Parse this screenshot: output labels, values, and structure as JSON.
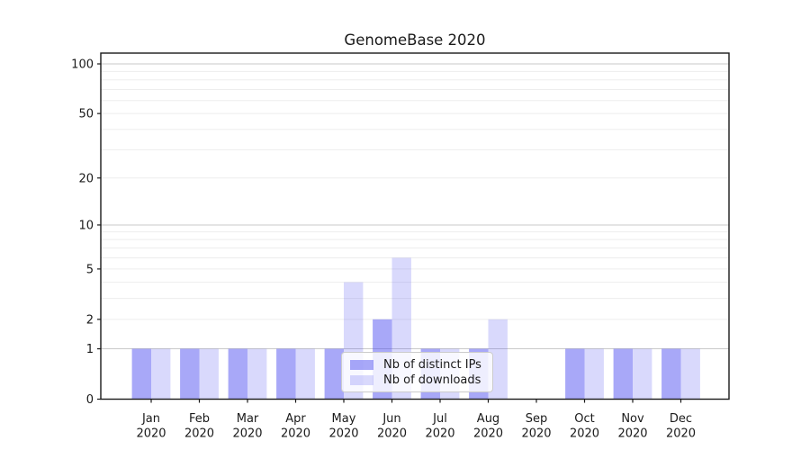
{
  "chart_data": {
    "type": "bar",
    "title": "GenomeBase 2020",
    "categories": [
      "Jan",
      "Feb",
      "Mar",
      "Apr",
      "May",
      "Jun",
      "Jul",
      "Aug",
      "Sep",
      "Oct",
      "Nov",
      "Dec"
    ],
    "x_tick_second_line": "2020",
    "series": [
      {
        "name": "Nb of distinct IPs",
        "color": "rgba(82,82,241,0.5)",
        "values": [
          1,
          1,
          1,
          1,
          1,
          2,
          1,
          1,
          0,
          1,
          1,
          1
        ]
      },
      {
        "name": "Nb of downloads",
        "color": "rgba(82,82,241,0.22)",
        "values": [
          1,
          1,
          1,
          1,
          4,
          6,
          1,
          2,
          0,
          1,
          1,
          1
        ]
      }
    ],
    "xlabel": "",
    "ylabel": "",
    "y_scale": "log1p",
    "y_ticks": [
      0,
      1,
      2,
      5,
      10,
      20,
      50,
      100
    ],
    "ylim": [
      0,
      117
    ],
    "grid": {
      "on": true,
      "major_values": [
        1,
        10,
        100
      ],
      "minor_values": [
        2,
        3,
        4,
        5,
        6,
        7,
        8,
        9,
        20,
        30,
        40,
        50,
        60,
        70,
        80,
        90
      ],
      "major_color": "#c9c9c9",
      "minor_color": "#ededed"
    },
    "legend_position": "lower center",
    "axis_color": "#1a1a1a",
    "tick_label_color": "#1a1a1a"
  }
}
